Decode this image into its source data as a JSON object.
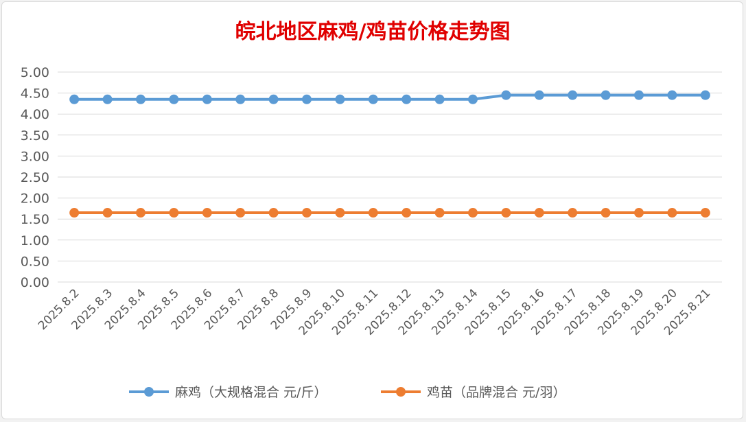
{
  "chart_data": {
    "type": "line",
    "title": "皖北地区麻鸡/鸡苗价格走势图",
    "xlabel": "",
    "ylabel": "",
    "ylim": [
      0,
      5
    ],
    "yticks": [
      "0.00",
      "0.50",
      "1.00",
      "1.50",
      "2.00",
      "2.50",
      "3.00",
      "3.50",
      "4.00",
      "4.50",
      "5.00"
    ],
    "grid": true,
    "legend_position": "bottom",
    "categories": [
      "2025.8.2",
      "2025.8.3",
      "2025.8.4",
      "2025.8.5",
      "2025.8.6",
      "2025.8.7",
      "2025.8.8",
      "2025.8.9",
      "2025.8.10",
      "2025.8.11",
      "2025.8.12",
      "2025.8.13",
      "2025.8.14",
      "2025.8.15",
      "2025.8.16",
      "2025.8.17",
      "2025.8.18",
      "2025.8.19",
      "2025.8.20",
      "2025.8.21"
    ],
    "series": [
      {
        "name": "麻鸡（大规格混合 元/斤）",
        "color": "#5b9bd5",
        "values": [
          4.35,
          4.35,
          4.35,
          4.35,
          4.35,
          4.35,
          4.35,
          4.35,
          4.35,
          4.35,
          4.35,
          4.35,
          4.35,
          4.45,
          4.45,
          4.45,
          4.45,
          4.45,
          4.45,
          4.45
        ]
      },
      {
        "name": "鸡苗（品牌混合 元/羽）",
        "color": "#ed7d31",
        "values": [
          1.65,
          1.65,
          1.65,
          1.65,
          1.65,
          1.65,
          1.65,
          1.65,
          1.65,
          1.65,
          1.65,
          1.65,
          1.65,
          1.65,
          1.65,
          1.65,
          1.65,
          1.65,
          1.65,
          1.65
        ]
      }
    ],
    "title_color": "#e00000"
  }
}
